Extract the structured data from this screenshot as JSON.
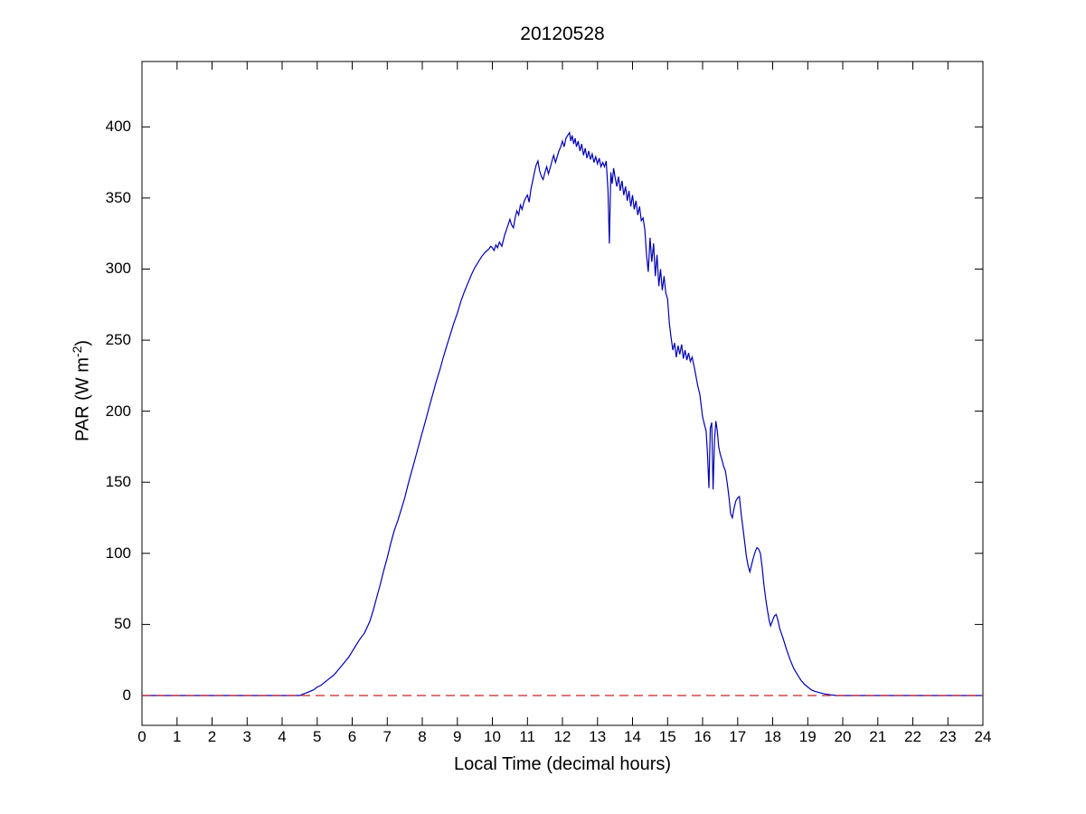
{
  "chart_data": {
    "type": "line",
    "title": "20120528",
    "xlabel": "Local Time (decimal hours)",
    "ylabel_prefix": "PAR (W m",
    "ylabel_exponent": "-2",
    "ylabel_suffix": ")",
    "xlim": [
      0,
      24
    ],
    "ylim": [
      -21,
      446
    ],
    "xticks": [
      0,
      1,
      2,
      3,
      4,
      5,
      6,
      7,
      8,
      9,
      10,
      11,
      12,
      13,
      14,
      15,
      16,
      17,
      18,
      19,
      20,
      21,
      22,
      23,
      24
    ],
    "yticks": [
      0,
      50,
      100,
      150,
      200,
      250,
      300,
      350,
      400
    ],
    "grid": false,
    "legend": null,
    "background_color": "#ffffff",
    "axis_color": "#000000",
    "series": [
      {
        "name": "par",
        "color": "#0000b3",
        "style": "solid",
        "points": [
          [
            0,
            0
          ],
          [
            0.5,
            0
          ],
          [
            1,
            0
          ],
          [
            1.5,
            0
          ],
          [
            2,
            0
          ],
          [
            2.5,
            0
          ],
          [
            3,
            0
          ],
          [
            3.5,
            0
          ],
          [
            4,
            0
          ],
          [
            4.3,
            0
          ],
          [
            4.5,
            0
          ],
          [
            4.6,
            1
          ],
          [
            4.7,
            2
          ],
          [
            4.8,
            3
          ],
          [
            4.9,
            4
          ],
          [
            5.0,
            6
          ],
          [
            5.1,
            7
          ],
          [
            5.2,
            9
          ],
          [
            5.3,
            11
          ],
          [
            5.4,
            13
          ],
          [
            5.5,
            15
          ],
          [
            5.6,
            18
          ],
          [
            5.7,
            21
          ],
          [
            5.8,
            24
          ],
          [
            5.9,
            27
          ],
          [
            6.0,
            31
          ],
          [
            6.1,
            35
          ],
          [
            6.2,
            39
          ],
          [
            6.35,
            44
          ],
          [
            6.5,
            52
          ],
          [
            6.6,
            60
          ],
          [
            6.7,
            69
          ],
          [
            6.8,
            78
          ],
          [
            6.9,
            88
          ],
          [
            7.0,
            97
          ],
          [
            7.1,
            107
          ],
          [
            7.2,
            116
          ],
          [
            7.3,
            123
          ],
          [
            7.4,
            131
          ],
          [
            7.5,
            139
          ],
          [
            7.6,
            149
          ],
          [
            7.7,
            158
          ],
          [
            7.8,
            167
          ],
          [
            7.9,
            176
          ],
          [
            8.0,
            185
          ],
          [
            8.1,
            194
          ],
          [
            8.2,
            203
          ],
          [
            8.3,
            212
          ],
          [
            8.4,
            221
          ],
          [
            8.5,
            229
          ],
          [
            8.6,
            238
          ],
          [
            8.7,
            246
          ],
          [
            8.8,
            254
          ],
          [
            8.9,
            262
          ],
          [
            9.0,
            269
          ],
          [
            9.1,
            277
          ],
          [
            9.2,
            284
          ],
          [
            9.3,
            290
          ],
          [
            9.4,
            296
          ],
          [
            9.5,
            301
          ],
          [
            9.6,
            305
          ],
          [
            9.7,
            309
          ],
          [
            9.8,
            312
          ],
          [
            9.9,
            314
          ],
          [
            9.95,
            316
          ],
          [
            10.0,
            315
          ],
          [
            10.05,
            313
          ],
          [
            10.1,
            317
          ],
          [
            10.15,
            315
          ],
          [
            10.2,
            319
          ],
          [
            10.27,
            316
          ],
          [
            10.35,
            324
          ],
          [
            10.45,
            331
          ],
          [
            10.5,
            335
          ],
          [
            10.55,
            331
          ],
          [
            10.6,
            329
          ],
          [
            10.65,
            336
          ],
          [
            10.7,
            341
          ],
          [
            10.75,
            338
          ],
          [
            10.8,
            345
          ],
          [
            10.85,
            342
          ],
          [
            10.9,
            347
          ],
          [
            10.95,
            350
          ],
          [
            11.0,
            352
          ],
          [
            11.05,
            347
          ],
          [
            11.1,
            356
          ],
          [
            11.15,
            362
          ],
          [
            11.2,
            368
          ],
          [
            11.25,
            373
          ],
          [
            11.3,
            376
          ],
          [
            11.35,
            369
          ],
          [
            11.4,
            365
          ],
          [
            11.45,
            363
          ],
          [
            11.5,
            368
          ],
          [
            11.55,
            372
          ],
          [
            11.6,
            367
          ],
          [
            11.65,
            371
          ],
          [
            11.7,
            376
          ],
          [
            11.75,
            380
          ],
          [
            11.8,
            375
          ],
          [
            11.85,
            379
          ],
          [
            11.9,
            383
          ],
          [
            11.95,
            386
          ],
          [
            12.0,
            390
          ],
          [
            12.05,
            386
          ],
          [
            12.1,
            392
          ],
          [
            12.15,
            394
          ],
          [
            12.2,
            396
          ],
          [
            12.24,
            390
          ],
          [
            12.28,
            394
          ],
          [
            12.32,
            388
          ],
          [
            12.36,
            392
          ],
          [
            12.4,
            386
          ],
          [
            12.45,
            390
          ],
          [
            12.5,
            383
          ],
          [
            12.55,
            388
          ],
          [
            12.6,
            380
          ],
          [
            12.65,
            385
          ],
          [
            12.7,
            378
          ],
          [
            12.75,
            383
          ],
          [
            12.8,
            377
          ],
          [
            12.85,
            381
          ],
          [
            12.9,
            375
          ],
          [
            12.95,
            379
          ],
          [
            13.0,
            374
          ],
          [
            13.05,
            378
          ],
          [
            13.1,
            372
          ],
          [
            13.15,
            375
          ],
          [
            13.2,
            372
          ],
          [
            13.25,
            376
          ],
          [
            13.3,
            355
          ],
          [
            13.34,
            318
          ],
          [
            13.38,
            368
          ],
          [
            13.42,
            360
          ],
          [
            13.46,
            371
          ],
          [
            13.5,
            365
          ],
          [
            13.55,
            358
          ],
          [
            13.6,
            365
          ],
          [
            13.65,
            355
          ],
          [
            13.7,
            362
          ],
          [
            13.75,
            352
          ],
          [
            13.8,
            358
          ],
          [
            13.85,
            348
          ],
          [
            13.9,
            355
          ],
          [
            13.95,
            344
          ],
          [
            14.0,
            352
          ],
          [
            14.05,
            342
          ],
          [
            14.1,
            348
          ],
          [
            14.15,
            338
          ],
          [
            14.2,
            344
          ],
          [
            14.25,
            334
          ],
          [
            14.3,
            336
          ],
          [
            14.35,
            328
          ],
          [
            14.4,
            310
          ],
          [
            14.45,
            298
          ],
          [
            14.5,
            322
          ],
          [
            14.55,
            305
          ],
          [
            14.6,
            318
          ],
          [
            14.65,
            295
          ],
          [
            14.7,
            310
          ],
          [
            14.75,
            288
          ],
          [
            14.8,
            300
          ],
          [
            14.85,
            285
          ],
          [
            14.9,
            295
          ],
          [
            14.95,
            283
          ],
          [
            15.0,
            279
          ],
          [
            15.05,
            262
          ],
          [
            15.1,
            252
          ],
          [
            15.15,
            243
          ],
          [
            15.2,
            248
          ],
          [
            15.25,
            238
          ],
          [
            15.3,
            246
          ],
          [
            15.35,
            240
          ],
          [
            15.4,
            247
          ],
          [
            15.45,
            237
          ],
          [
            15.5,
            243
          ],
          [
            15.55,
            236
          ],
          [
            15.6,
            241
          ],
          [
            15.65,
            235
          ],
          [
            15.7,
            238
          ],
          [
            15.77,
            230
          ],
          [
            15.86,
            218
          ],
          [
            15.92,
            212
          ],
          [
            16.0,
            196
          ],
          [
            16.05,
            191
          ],
          [
            16.1,
            186
          ],
          [
            16.14,
            170
          ],
          [
            16.18,
            146
          ],
          [
            16.22,
            188
          ],
          [
            16.26,
            192
          ],
          [
            16.3,
            145
          ],
          [
            16.34,
            180
          ],
          [
            16.38,
            193
          ],
          [
            16.42,
            186
          ],
          [
            16.46,
            175
          ],
          [
            16.5,
            170
          ],
          [
            16.55,
            166
          ],
          [
            16.6,
            161
          ],
          [
            16.65,
            158
          ],
          [
            16.7,
            150
          ],
          [
            16.75,
            140
          ],
          [
            16.8,
            128
          ],
          [
            16.85,
            125
          ],
          [
            16.9,
            132
          ],
          [
            16.95,
            137
          ],
          [
            17.0,
            139
          ],
          [
            17.05,
            140
          ],
          [
            17.1,
            128
          ],
          [
            17.15,
            118
          ],
          [
            17.2,
            108
          ],
          [
            17.25,
            98
          ],
          [
            17.3,
            91
          ],
          [
            17.35,
            87
          ],
          [
            17.4,
            92
          ],
          [
            17.45,
            97
          ],
          [
            17.5,
            101
          ],
          [
            17.55,
            104
          ],
          [
            17.6,
            103
          ],
          [
            17.65,
            100
          ],
          [
            17.7,
            90
          ],
          [
            17.75,
            78
          ],
          [
            17.8,
            68
          ],
          [
            17.85,
            60
          ],
          [
            17.9,
            53
          ],
          [
            17.94,
            49
          ],
          [
            18.0,
            53
          ],
          [
            18.05,
            56
          ],
          [
            18.1,
            57
          ],
          [
            18.15,
            53
          ],
          [
            18.2,
            47
          ],
          [
            18.3,
            40
          ],
          [
            18.4,
            32
          ],
          [
            18.5,
            25
          ],
          [
            18.6,
            19
          ],
          [
            18.7,
            15
          ],
          [
            18.8,
            11
          ],
          [
            18.9,
            8
          ],
          [
            19.0,
            6
          ],
          [
            19.1,
            4
          ],
          [
            19.2,
            3
          ],
          [
            19.35,
            2
          ],
          [
            19.5,
            1
          ],
          [
            19.65,
            0.5
          ],
          [
            19.8,
            0
          ],
          [
            20.0,
            0
          ],
          [
            20.5,
            0
          ],
          [
            21,
            0
          ],
          [
            21.5,
            0
          ],
          [
            22,
            0
          ],
          [
            22.5,
            0
          ],
          [
            23,
            0
          ],
          [
            23.5,
            0
          ],
          [
            24,
            0
          ]
        ]
      },
      {
        "name": "zero-reference",
        "color": "#cc2222",
        "style": "dashed",
        "points": [
          [
            0,
            0
          ],
          [
            24,
            0
          ]
        ]
      }
    ]
  }
}
